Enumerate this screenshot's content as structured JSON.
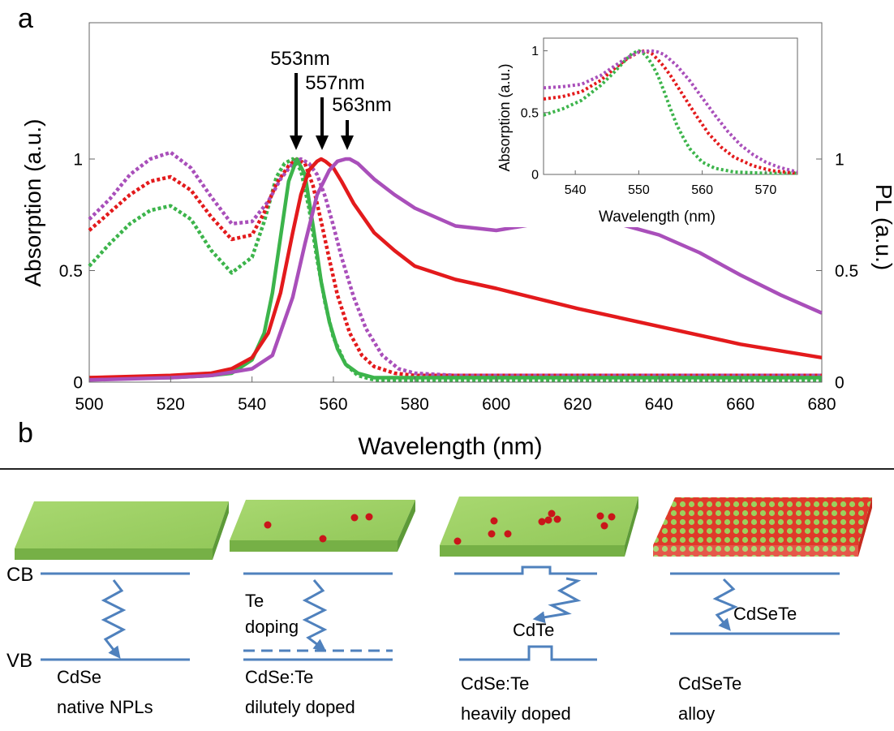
{
  "panel_a_label": "a",
  "panel_b_label": "b",
  "chart_data": [
    {
      "type": "line",
      "xlabel": "Wavelength (nm)",
      "ylabel": "Absorption (a.u.)",
      "y2label": "PL (a.u.)",
      "xlim": [
        500,
        680
      ],
      "ylim": [
        0,
        1.4
      ],
      "x_ticks": [
        500,
        520,
        540,
        560,
        580,
        600,
        620,
        640,
        660,
        680
      ],
      "y_ticks": [
        0,
        0.5,
        1
      ],
      "y_tick_labels": [
        "0",
        "0.5",
        "1"
      ],
      "y2_ticks": [
        0,
        0.5,
        1
      ],
      "y2_tick_labels": [
        "0",
        "0.5",
        "1"
      ],
      "grid": false,
      "colors": {
        "green": "#3cb44b",
        "red": "#e31a1c",
        "purple": "#a94fba"
      },
      "series": [
        {
          "kind": "absorption",
          "color": "green",
          "style": "dotted",
          "x": [
            500,
            505,
            510,
            515,
            520,
            525,
            530,
            535,
            540,
            543,
            546,
            548,
            550,
            552,
            554,
            556,
            558,
            560,
            563,
            566,
            570,
            575,
            580,
            590,
            600,
            620,
            650,
            680
          ],
          "y": [
            0.52,
            0.62,
            0.71,
            0.77,
            0.79,
            0.73,
            0.59,
            0.49,
            0.56,
            0.72,
            0.92,
            0.98,
            1.0,
            0.95,
            0.78,
            0.55,
            0.35,
            0.2,
            0.08,
            0.03,
            0.01,
            0.01,
            0.01,
            0.01,
            0.01,
            0.01,
            0.01,
            0.01
          ]
        },
        {
          "kind": "absorption",
          "color": "red",
          "style": "dotted",
          "x": [
            500,
            505,
            510,
            515,
            520,
            525,
            530,
            535,
            540,
            543,
            546,
            549,
            551,
            553,
            555,
            557,
            559,
            561,
            564,
            567,
            570,
            575,
            580,
            590,
            600,
            620,
            650,
            680
          ],
          "y": [
            0.68,
            0.76,
            0.84,
            0.9,
            0.92,
            0.86,
            0.74,
            0.64,
            0.66,
            0.76,
            0.89,
            0.97,
            1.0,
            0.98,
            0.88,
            0.72,
            0.55,
            0.39,
            0.22,
            0.12,
            0.07,
            0.04,
            0.03,
            0.03,
            0.03,
            0.03,
            0.03,
            0.03
          ]
        },
        {
          "kind": "absorption",
          "color": "purple",
          "style": "dotted",
          "x": [
            500,
            505,
            510,
            515,
            520,
            525,
            530,
            535,
            540,
            544,
            547,
            550,
            552,
            554,
            556,
            558,
            560,
            562,
            565,
            568,
            572,
            576,
            580,
            590,
            600,
            620,
            650,
            680
          ],
          "y": [
            0.73,
            0.82,
            0.93,
            1.0,
            1.03,
            0.96,
            0.83,
            0.71,
            0.72,
            0.81,
            0.91,
            0.98,
            1.0,
            0.98,
            0.93,
            0.83,
            0.7,
            0.56,
            0.38,
            0.24,
            0.12,
            0.06,
            0.04,
            0.03,
            0.03,
            0.03,
            0.03,
            0.03
          ]
        },
        {
          "kind": "PL",
          "color": "green",
          "style": "solid",
          "x": [
            500,
            520,
            530,
            535,
            540,
            543,
            545,
            547,
            549,
            551,
            553,
            555,
            557,
            559,
            561,
            563,
            566,
            570,
            575,
            580,
            600,
            640,
            680
          ],
          "y": [
            0.02,
            0.02,
            0.03,
            0.04,
            0.1,
            0.22,
            0.4,
            0.65,
            0.9,
            1.0,
            0.93,
            0.7,
            0.45,
            0.27,
            0.15,
            0.08,
            0.04,
            0.02,
            0.02,
            0.02,
            0.02,
            0.02,
            0.02
          ]
        },
        {
          "kind": "PL",
          "color": "red",
          "style": "solid",
          "x": [
            500,
            520,
            530,
            535,
            540,
            544,
            547,
            550,
            552,
            554,
            556,
            557,
            558,
            560,
            562,
            565,
            570,
            575,
            580,
            590,
            600,
            620,
            640,
            660,
            680
          ],
          "y": [
            0.02,
            0.03,
            0.04,
            0.06,
            0.11,
            0.22,
            0.4,
            0.67,
            0.84,
            0.95,
            0.99,
            1.0,
            0.99,
            0.96,
            0.9,
            0.8,
            0.67,
            0.59,
            0.52,
            0.46,
            0.42,
            0.33,
            0.25,
            0.17,
            0.11
          ]
        },
        {
          "kind": "PL",
          "color": "purple",
          "style": "solid",
          "x": [
            500,
            520,
            530,
            540,
            545,
            550,
            553,
            556,
            559,
            561,
            563,
            564,
            566,
            570,
            575,
            580,
            590,
            600,
            610,
            620,
            630,
            640,
            650,
            660,
            670,
            680
          ],
          "y": [
            0.01,
            0.02,
            0.03,
            0.06,
            0.12,
            0.38,
            0.62,
            0.84,
            0.95,
            0.99,
            1.0,
            1.0,
            0.98,
            0.91,
            0.84,
            0.78,
            0.7,
            0.68,
            0.71,
            0.74,
            0.71,
            0.66,
            0.58,
            0.48,
            0.39,
            0.31
          ]
        }
      ],
      "annotations": [
        {
          "text": "553nm",
          "x": 553
        },
        {
          "text": "557nm",
          "x": 557
        },
        {
          "text": "563nm",
          "x": 563
        }
      ]
    },
    {
      "type": "line",
      "role": "inset",
      "xlabel": "Wavelength (nm)",
      "ylabel": "Absorption (a.u.)",
      "xlim": [
        535,
        575
      ],
      "ylim": [
        0,
        1.05
      ],
      "x_ticks": [
        540,
        550,
        560,
        570
      ],
      "y_ticks": [
        0,
        0.5,
        1
      ],
      "y_tick_labels": [
        "0",
        "0.5",
        "1"
      ],
      "series": [
        {
          "color": "green",
          "style": "dotted",
          "x": [
            535,
            538,
            541,
            544,
            546,
            548,
            549,
            550,
            551,
            552,
            553,
            554,
            555,
            556,
            557,
            558,
            560,
            562,
            565,
            570,
            575
          ],
          "y": [
            0.48,
            0.53,
            0.6,
            0.72,
            0.82,
            0.93,
            0.98,
            1.0,
            0.97,
            0.9,
            0.8,
            0.67,
            0.53,
            0.4,
            0.3,
            0.21,
            0.1,
            0.05,
            0.02,
            0.01,
            0.01
          ]
        },
        {
          "color": "red",
          "style": "dotted",
          "x": [
            535,
            538,
            541,
            544,
            546,
            548,
            550,
            551,
            552,
            553,
            554,
            555,
            557,
            559,
            561,
            563,
            565,
            568,
            571,
            575
          ],
          "y": [
            0.61,
            0.63,
            0.67,
            0.76,
            0.85,
            0.93,
            0.99,
            1.0,
            0.98,
            0.93,
            0.87,
            0.8,
            0.64,
            0.48,
            0.33,
            0.22,
            0.14,
            0.07,
            0.03,
            0.01
          ]
        },
        {
          "color": "purple",
          "style": "dotted",
          "x": [
            535,
            538,
            541,
            544,
            546,
            548,
            550,
            552,
            553,
            554,
            556,
            558,
            560,
            562,
            564,
            566,
            568,
            570,
            572,
            575
          ],
          "y": [
            0.7,
            0.71,
            0.73,
            0.8,
            0.87,
            0.94,
            0.99,
            1.0,
            0.99,
            0.97,
            0.88,
            0.76,
            0.62,
            0.48,
            0.35,
            0.24,
            0.16,
            0.1,
            0.06,
            0.02
          ]
        }
      ]
    }
  ],
  "panel_b": {
    "cb_label": "CB",
    "vb_label": "VB",
    "columns": [
      {
        "name_line1": "CdSe",
        "name_line2": "native NPLs"
      },
      {
        "name_line1": "CdSe:Te",
        "name_line2": "dilutely doped",
        "annotation_line1": "Te",
        "annotation_line2": "doping"
      },
      {
        "name_line1": "CdSe:Te",
        "name_line2": "heavily doped",
        "annotation": "CdTe"
      },
      {
        "name_line1": "CdSeTe",
        "name_line2": "alloy",
        "annotation": "CdSeTe"
      }
    ]
  }
}
